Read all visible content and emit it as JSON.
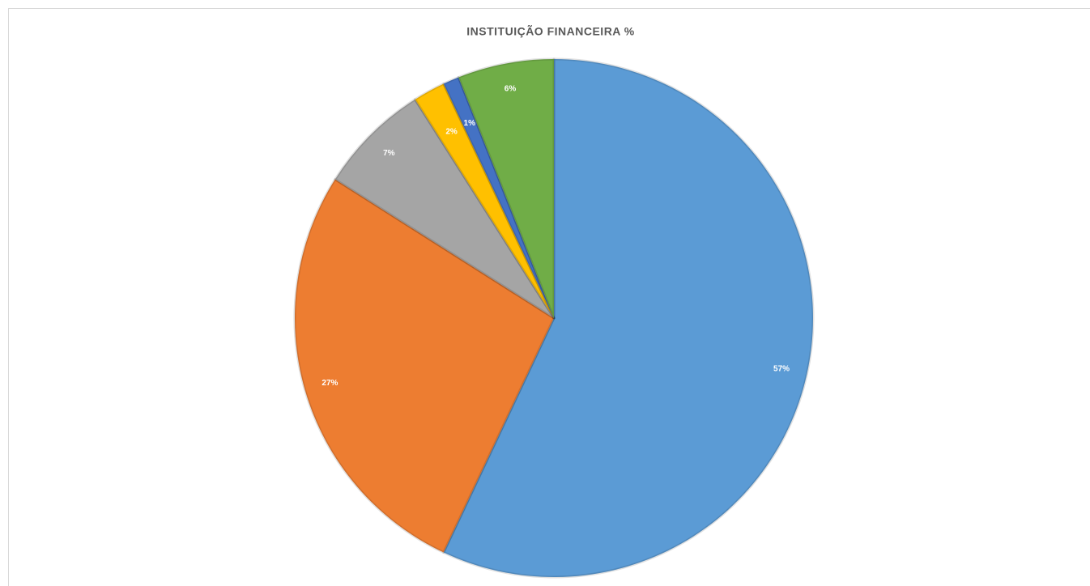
{
  "chart_data": {
    "type": "pie",
    "title": "INSTITUIÇÃO FINANCEIRA %",
    "values": [
      57,
      27,
      7,
      2,
      1,
      6
    ],
    "value_labels": [
      "57%",
      "27%",
      "7%",
      "2%",
      "1%",
      "6%"
    ],
    "colors": [
      "#5b9bd5",
      "#ed7d31",
      "#a5a5a5",
      "#ffc000",
      "#4472c4",
      "#70ad47"
    ]
  }
}
